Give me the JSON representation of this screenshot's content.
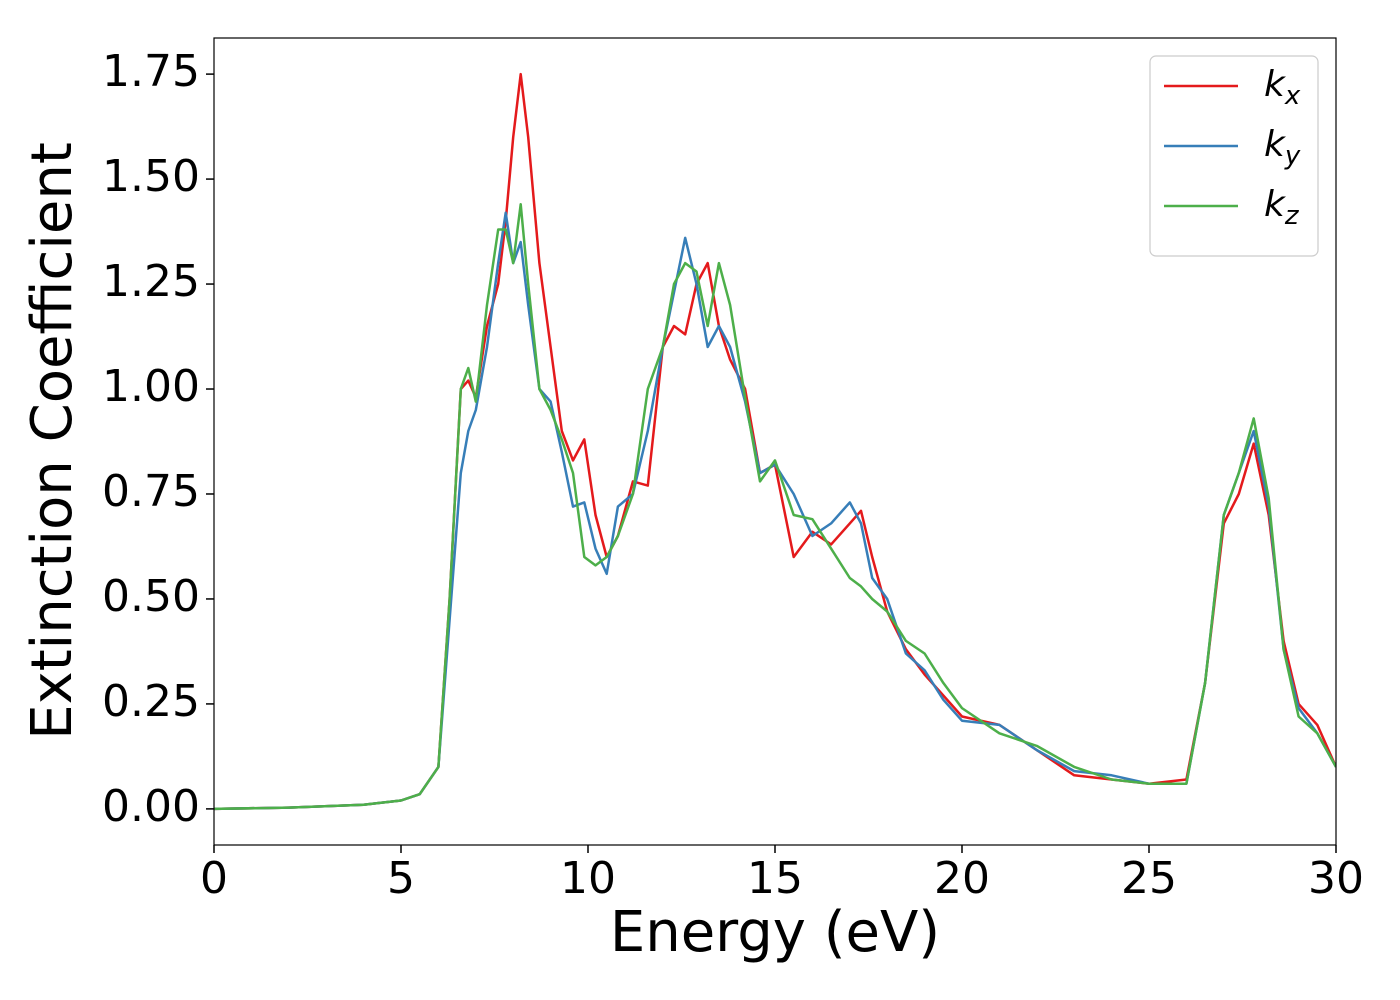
{
  "chart_data": {
    "type": "line",
    "x_label": "Energy (eV)",
    "y_label": "Extinction Coefficient",
    "x": [
      0,
      2,
      4,
      5,
      5.5,
      6,
      6.3,
      6.6,
      6.8,
      7,
      7.3,
      7.6,
      7.8,
      8,
      8.2,
      8.4,
      8.7,
      9,
      9.3,
      9.6,
      9.9,
      10.2,
      10.5,
      10.8,
      11.2,
      11.6,
      12,
      12.3,
      12.6,
      12.9,
      13.2,
      13.5,
      13.8,
      14.2,
      14.6,
      15,
      15.5,
      16,
      16.5,
      17,
      17.3,
      17.6,
      18,
      18.5,
      19,
      19.5,
      20,
      21,
      22,
      23,
      24,
      25,
      26,
      26.5,
      27,
      27.4,
      27.8,
      28.2,
      28.6,
      29,
      29.5,
      30
    ],
    "series": [
      {
        "name": "k_x",
        "color": "#e41a1c",
        "values": [
          0,
          0.003,
          0.01,
          0.02,
          0.035,
          0.1,
          0.5,
          1.0,
          1.02,
          0.98,
          1.15,
          1.25,
          1.4,
          1.6,
          1.75,
          1.6,
          1.3,
          1.1,
          0.9,
          0.83,
          0.88,
          0.7,
          0.6,
          0.65,
          0.78,
          0.77,
          1.1,
          1.15,
          1.13,
          1.25,
          1.3,
          1.15,
          1.07,
          1.0,
          0.8,
          0.82,
          0.6,
          0.66,
          0.63,
          0.68,
          0.71,
          0.6,
          0.47,
          0.38,
          0.32,
          0.27,
          0.22,
          0.2,
          0.14,
          0.08,
          0.07,
          0.06,
          0.07,
          0.3,
          0.68,
          0.75,
          0.87,
          0.7,
          0.4,
          0.25,
          0.2,
          0.1
        ]
      },
      {
        "name": "k_y",
        "color": "#377eb8",
        "values": [
          0,
          0.003,
          0.01,
          0.02,
          0.035,
          0.1,
          0.45,
          0.8,
          0.9,
          0.95,
          1.1,
          1.3,
          1.42,
          1.3,
          1.35,
          1.2,
          1.0,
          0.97,
          0.85,
          0.72,
          0.73,
          0.62,
          0.56,
          0.72,
          0.75,
          0.9,
          1.1,
          1.23,
          1.36,
          1.25,
          1.1,
          1.15,
          1.1,
          0.97,
          0.8,
          0.82,
          0.75,
          0.65,
          0.68,
          0.73,
          0.68,
          0.55,
          0.5,
          0.37,
          0.33,
          0.26,
          0.21,
          0.2,
          0.14,
          0.09,
          0.08,
          0.06,
          0.06,
          0.3,
          0.7,
          0.8,
          0.9,
          0.72,
          0.38,
          0.24,
          0.18,
          0.1
        ]
      },
      {
        "name": "k_z",
        "color": "#4daf4a",
        "values": [
          0,
          0.003,
          0.01,
          0.02,
          0.035,
          0.1,
          0.5,
          1.0,
          1.05,
          0.97,
          1.2,
          1.38,
          1.38,
          1.3,
          1.44,
          1.25,
          1.0,
          0.95,
          0.88,
          0.8,
          0.6,
          0.58,
          0.6,
          0.65,
          0.75,
          1.0,
          1.1,
          1.25,
          1.3,
          1.28,
          1.15,
          1.3,
          1.2,
          0.98,
          0.78,
          0.83,
          0.7,
          0.69,
          0.62,
          0.55,
          0.53,
          0.5,
          0.47,
          0.4,
          0.37,
          0.3,
          0.24,
          0.18,
          0.15,
          0.1,
          0.07,
          0.06,
          0.06,
          0.3,
          0.7,
          0.8,
          0.93,
          0.74,
          0.38,
          0.22,
          0.18,
          0.1
        ]
      }
    ],
    "xlim": [
      0,
      30
    ],
    "xticks": [
      0,
      5,
      10,
      15,
      20,
      25,
      30
    ],
    "ylim": [
      -0.086,
      1.836
    ],
    "yticks": [
      {
        "value": 0,
        "label": "0.00"
      },
      {
        "value": 0.25,
        "label": "0.25"
      },
      {
        "value": 0.5,
        "label": "0.50"
      },
      {
        "value": 0.75,
        "label": "0.75"
      },
      {
        "value": 1,
        "label": "1.00"
      },
      {
        "value": 1.25,
        "label": "1.25"
      },
      {
        "value": 1.5,
        "label": "1.50"
      },
      {
        "value": 1.75,
        "label": "1.75"
      }
    ],
    "grid": false,
    "legend": "upper right"
  }
}
